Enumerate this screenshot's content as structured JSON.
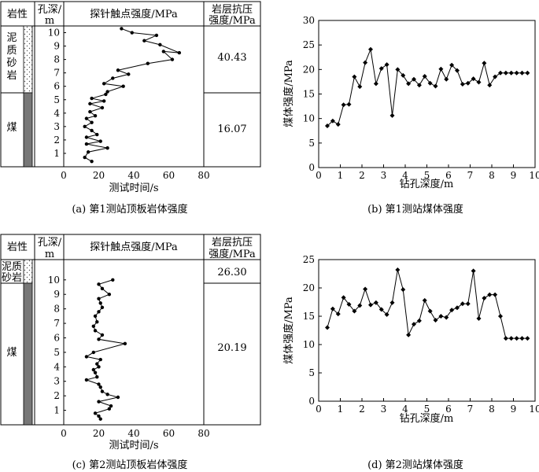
{
  "chart_data": [
    {
      "type": "line",
      "caption": "(a) 第1测站顶板岩体强度",
      "headers": {
        "lith": "岩性",
        "depth": [
          "孔深/",
          "m"
        ],
        "probe": "探针触点强度/MPa",
        "strength": [
          "岩层抗压",
          "强度/MPa"
        ]
      },
      "lithology": [
        {
          "name": "泥质砂岩",
          "name_lines": [
            "泥",
            "质",
            "砂",
            "岩"
          ],
          "from": 10.5,
          "to": 5.3,
          "pattern": "dotted"
        },
        {
          "name": "煤",
          "name_lines": [
            "煤"
          ],
          "from": 5.3,
          "to": 0,
          "pattern": "coal"
        }
      ],
      "layer_strength": [
        "40.43",
        "16.07"
      ],
      "x_ticks": [
        "0",
        "20",
        "40",
        "60",
        "80"
      ],
      "y_ticks": [
        "1",
        "2",
        "3",
        "4",
        "5",
        "6",
        "7",
        "8",
        "9",
        "10"
      ],
      "xlabel": "测试时间/s",
      "xlim": [
        0,
        80
      ],
      "ylim": [
        0,
        10.5
      ],
      "x": [
        33,
        39,
        53,
        46,
        55,
        66,
        57,
        62,
        48,
        31,
        37,
        28,
        23,
        34,
        25,
        24,
        16,
        23,
        15,
        22,
        15,
        18,
        13,
        16,
        12,
        16,
        19,
        13,
        21,
        13,
        25,
        14,
        12,
        16
      ],
      "y": [
        10.3,
        10.0,
        9.8,
        9.4,
        9.1,
        8.5,
        8.6,
        8.0,
        7.7,
        7.2,
        6.9,
        6.6,
        6.2,
        6.0,
        5.6,
        5.4,
        5.1,
        4.9,
        4.7,
        4.4,
        4.1,
        3.8,
        3.6,
        3.3,
        3.0,
        2.7,
        2.4,
        2.2,
        1.9,
        1.7,
        1.4,
        1.1,
        0.7,
        0.4
      ]
    },
    {
      "type": "line",
      "caption": "(b) 第1测站煤体强度",
      "xlabel": "钻孔深度/m",
      "ylabel": "煤体强度/MPa",
      "xlim": [
        0,
        10
      ],
      "ylim": [
        0,
        30
      ],
      "x_ticks": [
        "0",
        "1",
        "2",
        "3",
        "4",
        "5",
        "6",
        "7",
        "8",
        "9",
        "10"
      ],
      "y_ticks": [
        "0",
        "5",
        "10",
        "15",
        "20",
        "25",
        "30"
      ],
      "x": [
        0.4,
        0.65,
        0.9,
        1.15,
        1.4,
        1.65,
        1.9,
        2.15,
        2.4,
        2.65,
        2.9,
        3.15,
        3.4,
        3.65,
        3.9,
        4.15,
        4.4,
        4.65,
        4.9,
        5.15,
        5.4,
        5.65,
        5.9,
        6.15,
        6.4,
        6.65,
        6.9,
        7.15,
        7.4,
        7.65,
        7.9,
        8.15,
        8.4,
        8.65,
        8.9,
        9.15,
        9.4,
        9.65
      ],
      "y": [
        8.5,
        9.5,
        8.8,
        12.8,
        12.9,
        18.5,
        16.5,
        21.4,
        24.1,
        17.1,
        20.2,
        21.0,
        10.6,
        20.0,
        18.8,
        17.1,
        18.0,
        16.8,
        18.6,
        17.2,
        16.6,
        20.1,
        18.0,
        20.9,
        19.8,
        17.0,
        17.2,
        18.1,
        17.4,
        21.3,
        16.8,
        18.5,
        19.3,
        19.3,
        19.3,
        19.3,
        19.3,
        19.3
      ]
    },
    {
      "type": "line",
      "caption": "(c) 第2测站顶板岩体强度",
      "headers": {
        "lith": "岩性",
        "depth": [
          "孔深/",
          "m"
        ],
        "probe": "探针触点强度/MPa",
        "strength": [
          "岩层抗压",
          "强度/MPa"
        ]
      },
      "lithology": [
        {
          "name": "泥质砂岩",
          "name_lines": [
            "泥质",
            "砂岩"
          ],
          "from": 11.4,
          "to": 10.4,
          "pattern": "dotted"
        },
        {
          "name": "煤",
          "name_lines": [
            "煤"
          ],
          "from": 10.4,
          "to": 0,
          "pattern": "coal"
        }
      ],
      "layer_strength": [
        "26.30",
        "20.19"
      ],
      "x_ticks": [
        "0",
        "20",
        "40",
        "60",
        "80"
      ],
      "y_ticks": [
        "1",
        "2",
        "3",
        "4",
        "5",
        "6",
        "7",
        "8",
        "9",
        "10"
      ],
      "xlabel": "测试时间/s",
      "xlim": [
        0,
        80
      ],
      "ylim": [
        0,
        11.4
      ],
      "x": [
        28,
        20,
        22,
        26,
        20,
        21,
        22,
        20,
        18,
        19,
        17,
        18,
        22,
        20,
        35,
        17,
        13,
        21,
        19,
        20,
        17,
        18,
        19,
        13,
        20,
        21,
        22,
        25,
        31,
        20,
        27,
        26,
        18,
        20,
        21
      ],
      "y": [
        10.0,
        9.7,
        9.4,
        9.0,
        8.7,
        8.4,
        8.1,
        7.8,
        7.5,
        7.1,
        6.8,
        6.5,
        6.2,
        5.9,
        5.6,
        5.0,
        4.7,
        4.5,
        4.2,
        4.0,
        3.8,
        3.6,
        3.3,
        3.1,
        2.8,
        2.6,
        2.3,
        2.1,
        1.9,
        1.6,
        1.3,
        1.1,
        0.8,
        0.6,
        0.4
      ]
    },
    {
      "type": "line",
      "caption": "(d) 第2测站煤体强度",
      "xlabel": "钻孔深度/m",
      "ylabel": "煤体强度/MPa",
      "xlim": [
        0,
        10
      ],
      "ylim": [
        0,
        25
      ],
      "x_ticks": [
        "0",
        "1",
        "2",
        "3",
        "4",
        "5",
        "6",
        "7",
        "8",
        "9",
        "10"
      ],
      "y_ticks": [
        "0",
        "5",
        "10",
        "15",
        "20",
        "25"
      ],
      "x": [
        0.4,
        0.65,
        0.9,
        1.15,
        1.4,
        1.65,
        1.9,
        2.15,
        2.4,
        2.65,
        2.9,
        3.15,
        3.4,
        3.65,
        3.9,
        4.15,
        4.4,
        4.65,
        4.9,
        5.15,
        5.4,
        5.65,
        5.9,
        6.15,
        6.4,
        6.65,
        6.9,
        7.15,
        7.4,
        7.65,
        7.9,
        8.15,
        8.4,
        8.65,
        8.9,
        9.15,
        9.4,
        9.65
      ],
      "y": [
        13.0,
        16.3,
        15.4,
        18.3,
        17.1,
        15.9,
        16.9,
        19.8,
        17.0,
        17.4,
        16.2,
        15.3,
        17.4,
        23.2,
        19.7,
        11.7,
        13.6,
        14.2,
        17.8,
        15.9,
        14.3,
        15.0,
        14.8,
        16.1,
        16.5,
        17.2,
        17.2,
        23.0,
        14.6,
        18.2,
        18.8,
        18.8,
        15.0,
        11.1,
        11.1,
        11.1,
        11.1,
        11.1
      ]
    }
  ]
}
